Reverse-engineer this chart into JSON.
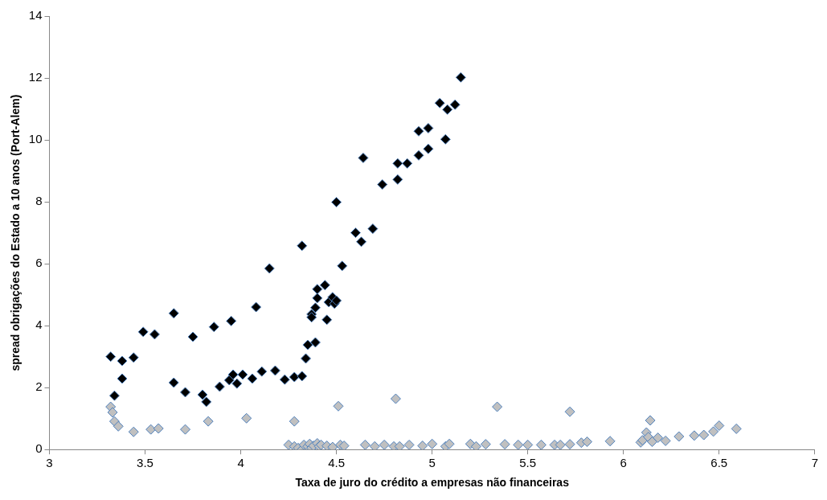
{
  "chart_data": {
    "type": "scatter",
    "xlabel": "Taxa de juro do crédito a empresas não financeiras",
    "ylabel": "spread obrigações do Estado a 10 anos (Port-Alem)",
    "xlim": [
      3,
      7
    ],
    "xticks": [
      3,
      3.5,
      4,
      4.5,
      5,
      5.5,
      6,
      6.5,
      7
    ],
    "ylim": [
      0,
      14
    ],
    "yticks": [
      0,
      2,
      4,
      6,
      8,
      10,
      12,
      14
    ],
    "grid": false,
    "legend": false,
    "marker": "diamond",
    "series": [
      {
        "color": "#000000",
        "x": [
          3.32,
          3.34,
          3.38,
          3.38,
          3.44,
          3.49,
          3.55,
          3.65,
          3.65,
          3.71,
          3.75,
          3.8,
          3.82,
          3.86,
          3.89,
          3.95,
          3.94,
          3.96,
          3.98,
          4.01,
          4.06,
          4.08,
          4.11,
          4.15,
          4.18,
          4.23,
          4.28,
          4.32,
          4.32,
          4.34,
          4.35,
          4.37,
          4.37,
          4.39,
          4.39,
          4.4,
          4.4,
          4.44,
          4.45,
          4.46,
          4.48,
          4.49,
          4.5,
          4.5,
          4.53,
          4.6,
          4.63,
          4.64,
          4.69,
          4.74,
          4.82,
          4.82,
          4.87,
          4.93,
          4.93,
          4.98,
          4.98,
          5.04,
          5.07,
          5.08,
          5.12,
          5.15
        ],
        "values": [
          3.0,
          1.74,
          2.86,
          2.29,
          2.97,
          3.8,
          3.72,
          4.4,
          2.16,
          1.85,
          3.64,
          1.77,
          1.54,
          3.96,
          2.03,
          4.15,
          2.24,
          2.42,
          2.13,
          2.42,
          2.29,
          4.6,
          2.52,
          5.85,
          2.55,
          2.26,
          2.34,
          2.37,
          6.58,
          2.94,
          3.38,
          4.37,
          4.27,
          3.46,
          4.58,
          4.89,
          5.18,
          5.31,
          4.19,
          4.76,
          4.92,
          4.71,
          4.81,
          7.99,
          5.93,
          7.0,
          6.71,
          9.42,
          7.13,
          8.56,
          9.24,
          8.72,
          9.24,
          10.28,
          9.5,
          10.38,
          9.71,
          11.19,
          10.02,
          10.98,
          11.14,
          12.02
        ]
      },
      {
        "color": "#c0c0c0",
        "x": [
          3.32,
          3.33,
          3.34,
          3.36,
          3.44,
          3.53,
          3.57,
          3.71,
          3.83,
          4.03,
          4.28,
          4.81,
          4.51,
          5.34,
          5.72,
          6.14,
          4.25,
          4.28,
          4.3,
          4.32,
          4.33,
          4.35,
          4.36,
          4.37,
          4.38,
          4.4,
          4.41,
          4.42,
          4.45,
          4.48,
          4.52,
          4.54,
          4.65,
          4.7,
          4.75,
          4.8,
          4.83,
          4.88,
          4.95,
          5.0,
          5.07,
          5.09,
          5.2,
          5.23,
          5.28,
          5.38,
          5.45,
          5.5,
          5.57,
          5.64,
          5.67,
          5.72,
          5.78,
          5.81,
          5.93,
          6.09,
          6.1,
          6.12,
          6.13,
          6.15,
          6.18,
          6.22,
          6.29,
          6.37,
          6.42,
          6.47,
          6.5,
          6.59
        ],
        "values": [
          1.38,
          1.2,
          0.91,
          0.75,
          0.57,
          0.65,
          0.68,
          0.65,
          0.91,
          1.01,
          0.91,
          1.64,
          1.4,
          1.38,
          1.22,
          0.94,
          0.15,
          0.1,
          0.05,
          0.0,
          0.15,
          0.1,
          0.18,
          0.05,
          0.12,
          0.2,
          0.1,
          0.15,
          0.12,
          0.08,
          0.15,
          0.12,
          0.15,
          0.1,
          0.15,
          0.1,
          0.1,
          0.15,
          0.12,
          0.18,
          0.1,
          0.18,
          0.18,
          0.1,
          0.17,
          0.17,
          0.15,
          0.15,
          0.15,
          0.15,
          0.15,
          0.17,
          0.22,
          0.25,
          0.27,
          0.23,
          0.3,
          0.55,
          0.4,
          0.25,
          0.38,
          0.28,
          0.42,
          0.45,
          0.47,
          0.58,
          0.77,
          0.67
        ]
      }
    ]
  }
}
